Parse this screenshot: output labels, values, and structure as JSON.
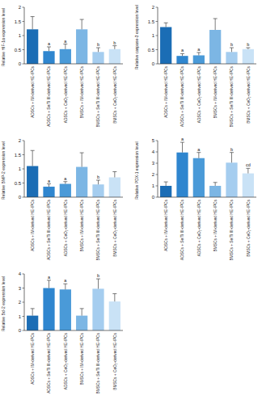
{
  "chart_data": [
    {
      "type": "bar",
      "y_label": "Relative HIF-1α expression level",
      "categories": [
        "ADSCs + IM-derived HE-IPCs",
        "ADSCs + Se/Ti III-derived HE-IPCs",
        "ADSCs + CeO₂-derived HE-IPCs",
        "BMSCs + IM-derived HE-IPCs",
        "BMSCs + Se/Ti III-derived HE-IPCs",
        "BMSCs + CeO₂-derived HE-IPCs"
      ],
      "values": [
        1.22,
        0.45,
        0.52,
        1.22,
        0.42,
        0.52
      ],
      "errors": [
        0.45,
        0.15,
        0.18,
        0.35,
        0.15,
        0.12
      ],
      "annotations": [
        null,
        "a",
        "a",
        null,
        "b",
        "b"
      ],
      "colors": [
        "#1b6db5",
        "#2f86cf",
        "#4a9ad8",
        "#7cb6e4",
        "#a5cdef",
        "#c9e2f6"
      ],
      "ylim": [
        0,
        2
      ],
      "yticks": [
        0,
        0.5,
        1,
        1.5,
        2
      ]
    },
    {
      "type": "bar",
      "y_label": "Relative caspase-3 expression level",
      "categories": [
        "ADSCs + IM-derived HE-IPCs",
        "ADSCs + Se/Ti III-derived HE-IPCs",
        "ADSCs + CeO₂-derived HE-IPCs",
        "BMSCs + IM-derived HE-IPCs",
        "BMSCs + Se/Ti III-derived HE-IPCs",
        "BMSCs + CeO₂-derived HE-IPCs"
      ],
      "values": [
        1.3,
        0.28,
        0.3,
        1.2,
        0.42,
        0.52
      ],
      "errors": [
        0.15,
        0.08,
        0.1,
        0.4,
        0.15,
        0.05
      ],
      "annotations": [
        null,
        "a",
        "a",
        null,
        "b",
        "b"
      ],
      "colors": [
        "#1b6db5",
        "#2f86cf",
        "#4a9ad8",
        "#7cb6e4",
        "#a5cdef",
        "#c9e2f6"
      ],
      "ylim": [
        0,
        2
      ],
      "yticks": [
        0,
        0.5,
        1,
        1.5,
        2
      ]
    },
    {
      "type": "bar",
      "y_label": "Relative BMP-2 expression level",
      "categories": [
        "ADSCs + IM-derived HE-IPCs",
        "ADSCs + Se/Ti III-derived HE-IPCs",
        "ADSCs + CeO₂-derived HE-IPCs",
        "BMSCs + IM-derived HE-IPCs",
        "BMSCs + Se/Ti III-derived HE-IPCs",
        "BMSCs + CeO₂-derived HE-IPCs"
      ],
      "values": [
        1.1,
        0.37,
        0.47,
        1.07,
        0.45,
        0.7
      ],
      "errors": [
        0.55,
        0.1,
        0.08,
        0.5,
        0.15,
        0.2
      ],
      "annotations": [
        null,
        "a",
        "a",
        null,
        "b",
        null
      ],
      "colors": [
        "#1b6db5",
        "#2f86cf",
        "#4a9ad8",
        "#7cb6e4",
        "#a5cdef",
        "#c9e2f6"
      ],
      "ylim": [
        0,
        2
      ],
      "yticks": [
        0,
        0.5,
        1,
        1.5,
        2
      ]
    },
    {
      "type": "bar",
      "y_label": "Relative PDX-1 expression level",
      "categories": [
        "ADSCs + IM-derived HE-IPCs",
        "ADSCs + Se/Ti III-derived HE-IPCs",
        "ADSCs + CeO₂-derived HE-IPCs",
        "BMSCs + IM-derived HE-IPCs",
        "BMSCs + Se/Ti III-derived HE-IPCs",
        "BMSCs + CeO₂-derived HE-IPCs"
      ],
      "values": [
        1.0,
        3.95,
        3.45,
        1.0,
        3.05,
        2.1
      ],
      "errors": [
        0.35,
        0.9,
        0.5,
        0.3,
        0.9,
        0.45
      ],
      "annotations": [
        null,
        "a",
        "a",
        null,
        "b",
        "cd"
      ],
      "colors": [
        "#1b6db5",
        "#2f86cf",
        "#4a9ad8",
        "#7cb6e4",
        "#a5cdef",
        "#c9e2f6"
      ],
      "ylim": [
        0,
        5
      ],
      "yticks": [
        0,
        1,
        2,
        3,
        4,
        5
      ]
    },
    {
      "type": "bar",
      "y_label": "Relative Bcl-2 expression level",
      "categories": [
        "ADSCs + IM-derived HE-IPCs",
        "ADSCs + Se/Ti III-derived HE-IPCs",
        "ADSCs + CeO₂-derived HE-IPCs",
        "BMSCs + IM-derived HE-IPCs",
        "BMSCs + Se/Ti III-derived HE-IPCs",
        "BMSCs + CeO₂-derived HE-IPCs"
      ],
      "values": [
        1.05,
        3.0,
        2.9,
        1.05,
        2.95,
        2.05
      ],
      "errors": [
        0.5,
        0.55,
        0.4,
        0.5,
        0.7,
        0.55
      ],
      "annotations": [
        null,
        "a",
        "a",
        null,
        "b",
        null
      ],
      "colors": [
        "#1b6db5",
        "#2f86cf",
        "#4a9ad8",
        "#7cb6e4",
        "#a5cdef",
        "#c9e2f6"
      ],
      "ylim": [
        0,
        4
      ],
      "yticks": [
        0,
        1,
        2,
        3,
        4
      ]
    }
  ]
}
